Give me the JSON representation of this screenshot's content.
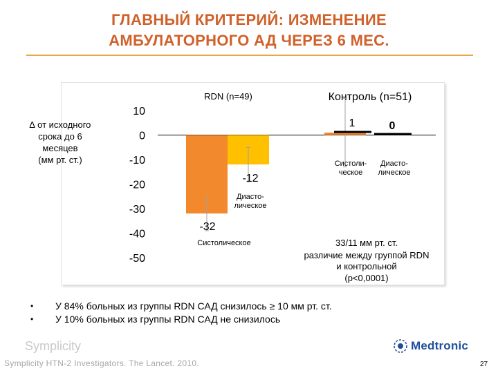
{
  "title": {
    "line1": "ГЛАВНЫЙ КРИТЕРИЙ: ИЗМЕНЕНИЕ",
    "line2": "АМБУЛАТОРНОГО АД ЧЕРЕЗ 6 МЕС."
  },
  "y_axis_label": [
    "∆ от исходного",
    "срока до 6",
    "месяцев",
    "(мм рт. ст.)"
  ],
  "chart_data": {
    "type": "bar",
    "groups": [
      {
        "name": "RDN (n=49)",
        "bars": [
          {
            "label": "Систолическое",
            "value": -32,
            "value_label": "-32"
          },
          {
            "label": "Диастолическое",
            "value": -12,
            "value_label": "-12"
          }
        ]
      },
      {
        "name": "Контроль  (n=51)",
        "bars": [
          {
            "label": "Систолическое",
            "value": 1,
            "value_label": "1"
          },
          {
            "label": "Диастолическое",
            "value": 0,
            "value_label": "0"
          }
        ]
      }
    ],
    "ylim": [
      -50,
      10
    ],
    "yticks": [
      "10",
      "0",
      "-10",
      "-20",
      "-30",
      "-40",
      "-50"
    ],
    "bar_labels": {
      "rdn_sys": "Систолическое",
      "rdn_dia_line1": "Диасто-",
      "rdn_dia_line2": "лическое",
      "ctrl_sys_line1": "Систоли-",
      "ctrl_sys_line2": "ческое",
      "ctrl_dia_line1": "Диасто-",
      "ctrl_dia_line2": "лическое"
    },
    "annotation": [
      "33/11 мм рт. ст.",
      "различие между группой RDN",
      "и контрольной",
      "(p<0,0001)"
    ],
    "colors": {
      "systolic": "#f28a2d",
      "diastolic": "#ffc000",
      "error_bar": "#a0a0a0"
    }
  },
  "bullets": [
    "У 84% больных из группы RDN САД снизилось ≥ 10 мм рт. ст.",
    "У 10% больных из группы RDN САД не снизилось"
  ],
  "bullet_marker": "•",
  "brand": "Symplicity",
  "footer": "Symplicity HTN-2 Investigators.  The Lancet. 2010.",
  "logo_text": "Medtronic",
  "page_number": "27"
}
